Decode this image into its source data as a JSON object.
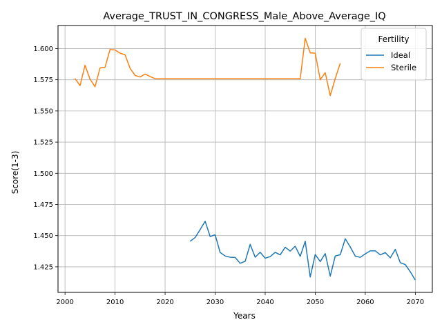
{
  "chart_data": {
    "type": "line",
    "title": "Average_TRUST_IN_CONGRESS_Male_Above_Average_IQ",
    "xlabel": "Years",
    "ylabel": "Score(1-3)",
    "xlim": [
      1998.6,
      2073.4
    ],
    "ylim": [
      1.4045,
      1.6185
    ],
    "xticks": [
      2000,
      2010,
      2020,
      2030,
      2040,
      2050,
      2060,
      2070
    ],
    "xtick_labels": [
      "2000",
      "2010",
      "2020",
      "2030",
      "2040",
      "2050",
      "2060",
      "2070"
    ],
    "yticks": [
      1.425,
      1.45,
      1.475,
      1.5,
      1.525,
      1.55,
      1.575,
      1.6
    ],
    "ytick_labels": [
      "1.425",
      "1.450",
      "1.475",
      "1.500",
      "1.525",
      "1.550",
      "1.575",
      "1.600"
    ],
    "grid": true,
    "legend": {
      "title": "Fertility",
      "placement": "top-right"
    },
    "series": [
      {
        "name": "Ideal",
        "color": "#1f77b4",
        "x": [
          2025,
          2026,
          2027,
          2028,
          2029,
          2030,
          2031,
          2032,
          2033,
          2034,
          2035,
          2036,
          2037,
          2038,
          2039,
          2040,
          2041,
          2042,
          2043,
          2044,
          2045,
          2046,
          2047,
          2048,
          2049,
          2050,
          2051,
          2052,
          2053,
          2054,
          2055,
          2056,
          2057,
          2058,
          2059,
          2060,
          2061,
          2062,
          2063,
          2064,
          2065,
          2066,
          2067,
          2068,
          2069,
          2070
        ],
        "y": [
          1.4455,
          1.4485,
          1.4548,
          1.4615,
          1.4493,
          1.4507,
          1.4365,
          1.4337,
          1.4327,
          1.4325,
          1.4278,
          1.4294,
          1.443,
          1.4327,
          1.4367,
          1.4319,
          1.4332,
          1.4366,
          1.4346,
          1.4407,
          1.4376,
          1.4415,
          1.4334,
          1.4455,
          1.4168,
          1.4349,
          1.4292,
          1.4356,
          1.4175,
          1.4337,
          1.4347,
          1.4475,
          1.4409,
          1.4336,
          1.4326,
          1.4354,
          1.4378,
          1.4378,
          1.4346,
          1.4364,
          1.4322,
          1.439,
          1.4283,
          1.4268,
          1.421,
          1.4144
        ]
      },
      {
        "name": "Sterile",
        "color": "#ff7f0e",
        "x": [
          2002,
          2003,
          2004,
          2005,
          2006,
          2007,
          2008,
          2009,
          2010,
          2011,
          2012,
          2013,
          2014,
          2015,
          2016,
          2017,
          2018,
          2019,
          2020,
          2021,
          2022,
          2023,
          2024,
          2025,
          2026,
          2027,
          2028,
          2029,
          2030,
          2031,
          2032,
          2033,
          2034,
          2035,
          2036,
          2037,
          2038,
          2039,
          2040,
          2041,
          2042,
          2043,
          2044,
          2045,
          2046,
          2047,
          2048,
          2049,
          2050,
          2051,
          2052,
          2053,
          2054,
          2055
        ],
        "y": [
          1.576,
          1.5703,
          1.5866,
          1.5755,
          1.5694,
          1.5845,
          1.585,
          1.5993,
          1.5989,
          1.5963,
          1.595,
          1.5842,
          1.5785,
          1.5772,
          1.5796,
          1.5776,
          1.5758,
          1.5758,
          1.5758,
          1.5758,
          1.5758,
          1.5758,
          1.5758,
          1.5758,
          1.5758,
          1.5758,
          1.5758,
          1.5758,
          1.5758,
          1.5758,
          1.5758,
          1.5758,
          1.5758,
          1.5758,
          1.5758,
          1.5758,
          1.5758,
          1.5758,
          1.5758,
          1.5758,
          1.5758,
          1.5758,
          1.5758,
          1.5758,
          1.5758,
          1.5758,
          1.6083,
          1.5966,
          1.5963,
          1.575,
          1.5807,
          1.5623,
          1.576,
          1.5883
        ]
      }
    ]
  }
}
